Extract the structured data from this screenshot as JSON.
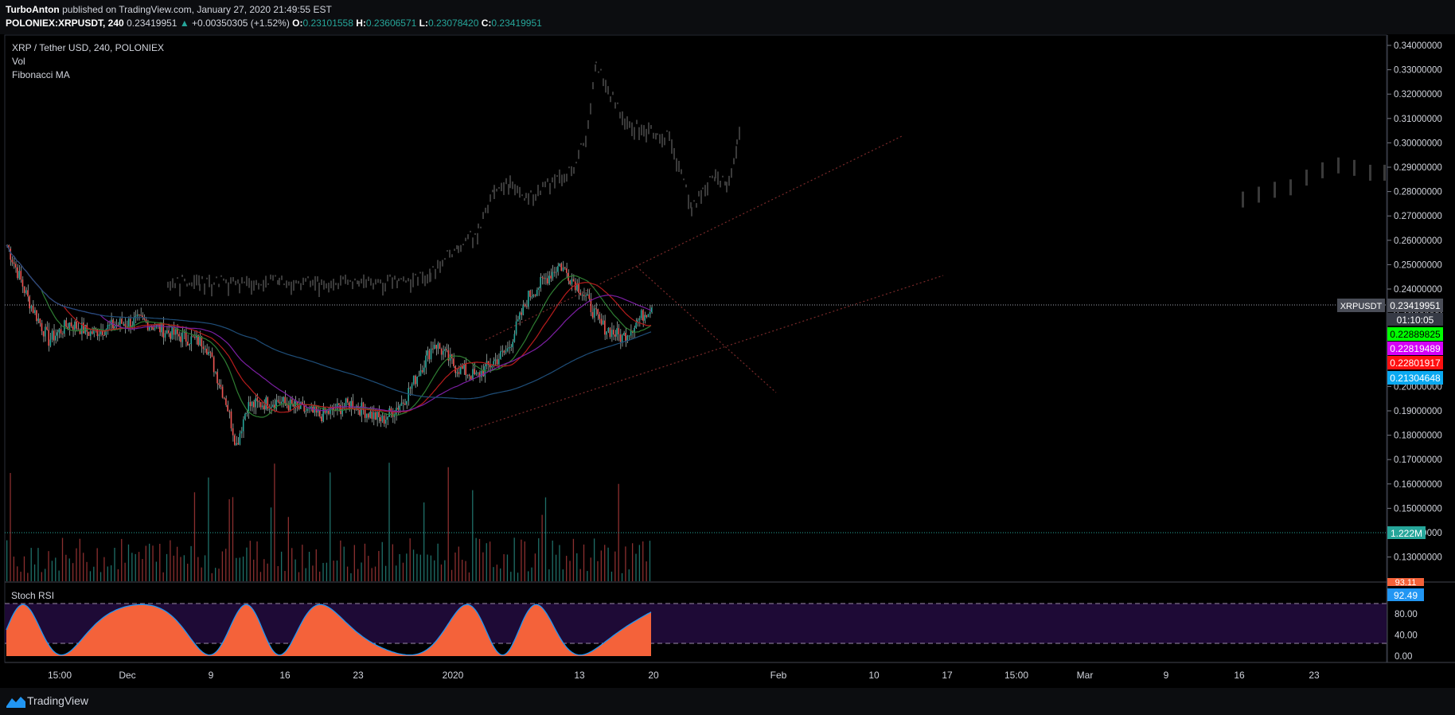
{
  "header": {
    "author": "TurboAnton",
    "published_text": "published on TradingView.com, January 27, 2020 21:49:55 EST",
    "symbol": "POLONIEX:XRPUSDT, 240",
    "last": "0.23419951",
    "change": "+0.00350305 (+1.52%)",
    "o_label": "O:",
    "o_value": "0.23101558",
    "h_label": "H:",
    "h_value": "0.23606571",
    "l_label": "L:",
    "l_value": "0.23078420",
    "c_label": "C:",
    "c_value": "0.23419951"
  },
  "legend": {
    "title": "XRP / Tether USD, 240, POLONIEX",
    "vol": "Vol",
    "fib": "Fibonacci MA",
    "stoch": "Stoch RSI"
  },
  "price_axis": {
    "ticks": [
      "0.34000000",
      "0.33000000",
      "0.32000000",
      "0.31000000",
      "0.30000000",
      "0.29000000",
      "0.28000000",
      "0.27000000",
      "0.26000000",
      "0.25000000",
      "0.24000000",
      "0.23000000",
      "0.22000000",
      "0.21000000",
      "0.20000000",
      "0.19000000",
      "0.18000000",
      "0.17000000",
      "0.16000000",
      "0.15000000",
      "0.14000000",
      "0.13000000"
    ],
    "badges": {
      "symbol_tag": "XRPUSDT",
      "last": "0.23419951",
      "countdown": "01:10:05",
      "ma_green": "0.22889825",
      "ma_magenta": "0.22819489",
      "ma_red": "0.22801917",
      "ma_blue": "0.21304648",
      "volume": "1.222M"
    }
  },
  "rsi_axis": {
    "ticks": [
      "80.00",
      "40.00",
      "0.00"
    ],
    "badge_top": "93.11",
    "badge_value": "92.49"
  },
  "time_axis": [
    "15:00",
    "Dec",
    "9",
    "16",
    "23",
    "2020",
    "13",
    "20",
    "Feb",
    "10",
    "17",
    "15:00",
    "Mar",
    "9",
    "16",
    "23"
  ],
  "footer": {
    "brand": "TradingView"
  },
  "colors": {
    "background": "#000000",
    "up": "#26a69a",
    "down": "#ef5350",
    "ma_green": "#00ff00",
    "ma_magenta": "#d500f9",
    "ma_red": "#ff0000",
    "ma_blue": "#0aa9f1",
    "rsi_fill": "#f4623a",
    "rsi_band": "#1e0a36"
  },
  "chart_data": [
    {
      "type": "candlestick",
      "title": "XRP / Tether USD, 240, POLONIEX",
      "ylim": [
        0.125,
        0.345
      ],
      "x_ticks": [
        "15:00",
        "Dec",
        "9",
        "16",
        "23",
        "2020",
        "13",
        "20",
        "Feb",
        "10",
        "17",
        "15:00",
        "Mar",
        "9",
        "16",
        "23"
      ],
      "close_path": [
        {
          "x": "Nov 26",
          "close": 0.258
        },
        {
          "x": "Nov 28",
          "close": 0.236
        },
        {
          "x": "Nov 30",
          "close": 0.219
        },
        {
          "x": "Dec 2",
          "close": 0.226
        },
        {
          "x": "Dec 4",
          "close": 0.222
        },
        {
          "x": "Dec 7",
          "close": 0.226
        },
        {
          "x": "Dec 9",
          "close": 0.227
        },
        {
          "x": "Dec 11",
          "close": 0.223
        },
        {
          "x": "Dec 13",
          "close": 0.22
        },
        {
          "x": "Dec 15",
          "close": 0.218
        },
        {
          "x": "Dec 17",
          "close": 0.194
        },
        {
          "x": "Dec 18",
          "close": 0.176
        },
        {
          "x": "Dec 19",
          "close": 0.192
        },
        {
          "x": "Dec 22",
          "close": 0.194
        },
        {
          "x": "Dec 26",
          "close": 0.188
        },
        {
          "x": "Dec 29",
          "close": 0.193
        },
        {
          "x": "Jan 1",
          "close": 0.186
        },
        {
          "x": "Jan 3",
          "close": 0.194
        },
        {
          "x": "Jan 6",
          "close": 0.218
        },
        {
          "x": "Jan 8",
          "close": 0.208
        },
        {
          "x": "Jan 10",
          "close": 0.204
        },
        {
          "x": "Jan 13",
          "close": 0.215
        },
        {
          "x": "Jan 15",
          "close": 0.237
        },
        {
          "x": "Jan 18",
          "close": 0.25
        },
        {
          "x": "Jan 20",
          "close": 0.24
        },
        {
          "x": "Jan 22",
          "close": 0.225
        },
        {
          "x": "Jan 24",
          "close": 0.22
        },
        {
          "x": "Jan 27",
          "close": 0.2342
        }
      ],
      "moving_averages": [
        {
          "name": "MA green",
          "last": 0.22889825
        },
        {
          "name": "MA magenta",
          "last": 0.22819489
        },
        {
          "name": "MA red",
          "last": 0.22801917
        },
        {
          "name": "MA blue",
          "last": 0.21304648
        }
      ]
    },
    {
      "type": "bar",
      "title": "Vol",
      "last": "1.222M"
    },
    {
      "type": "area",
      "title": "Stoch RSI",
      "ylim": [
        0,
        100
      ],
      "bands": [
        20,
        80
      ],
      "last": 92.49
    }
  ]
}
